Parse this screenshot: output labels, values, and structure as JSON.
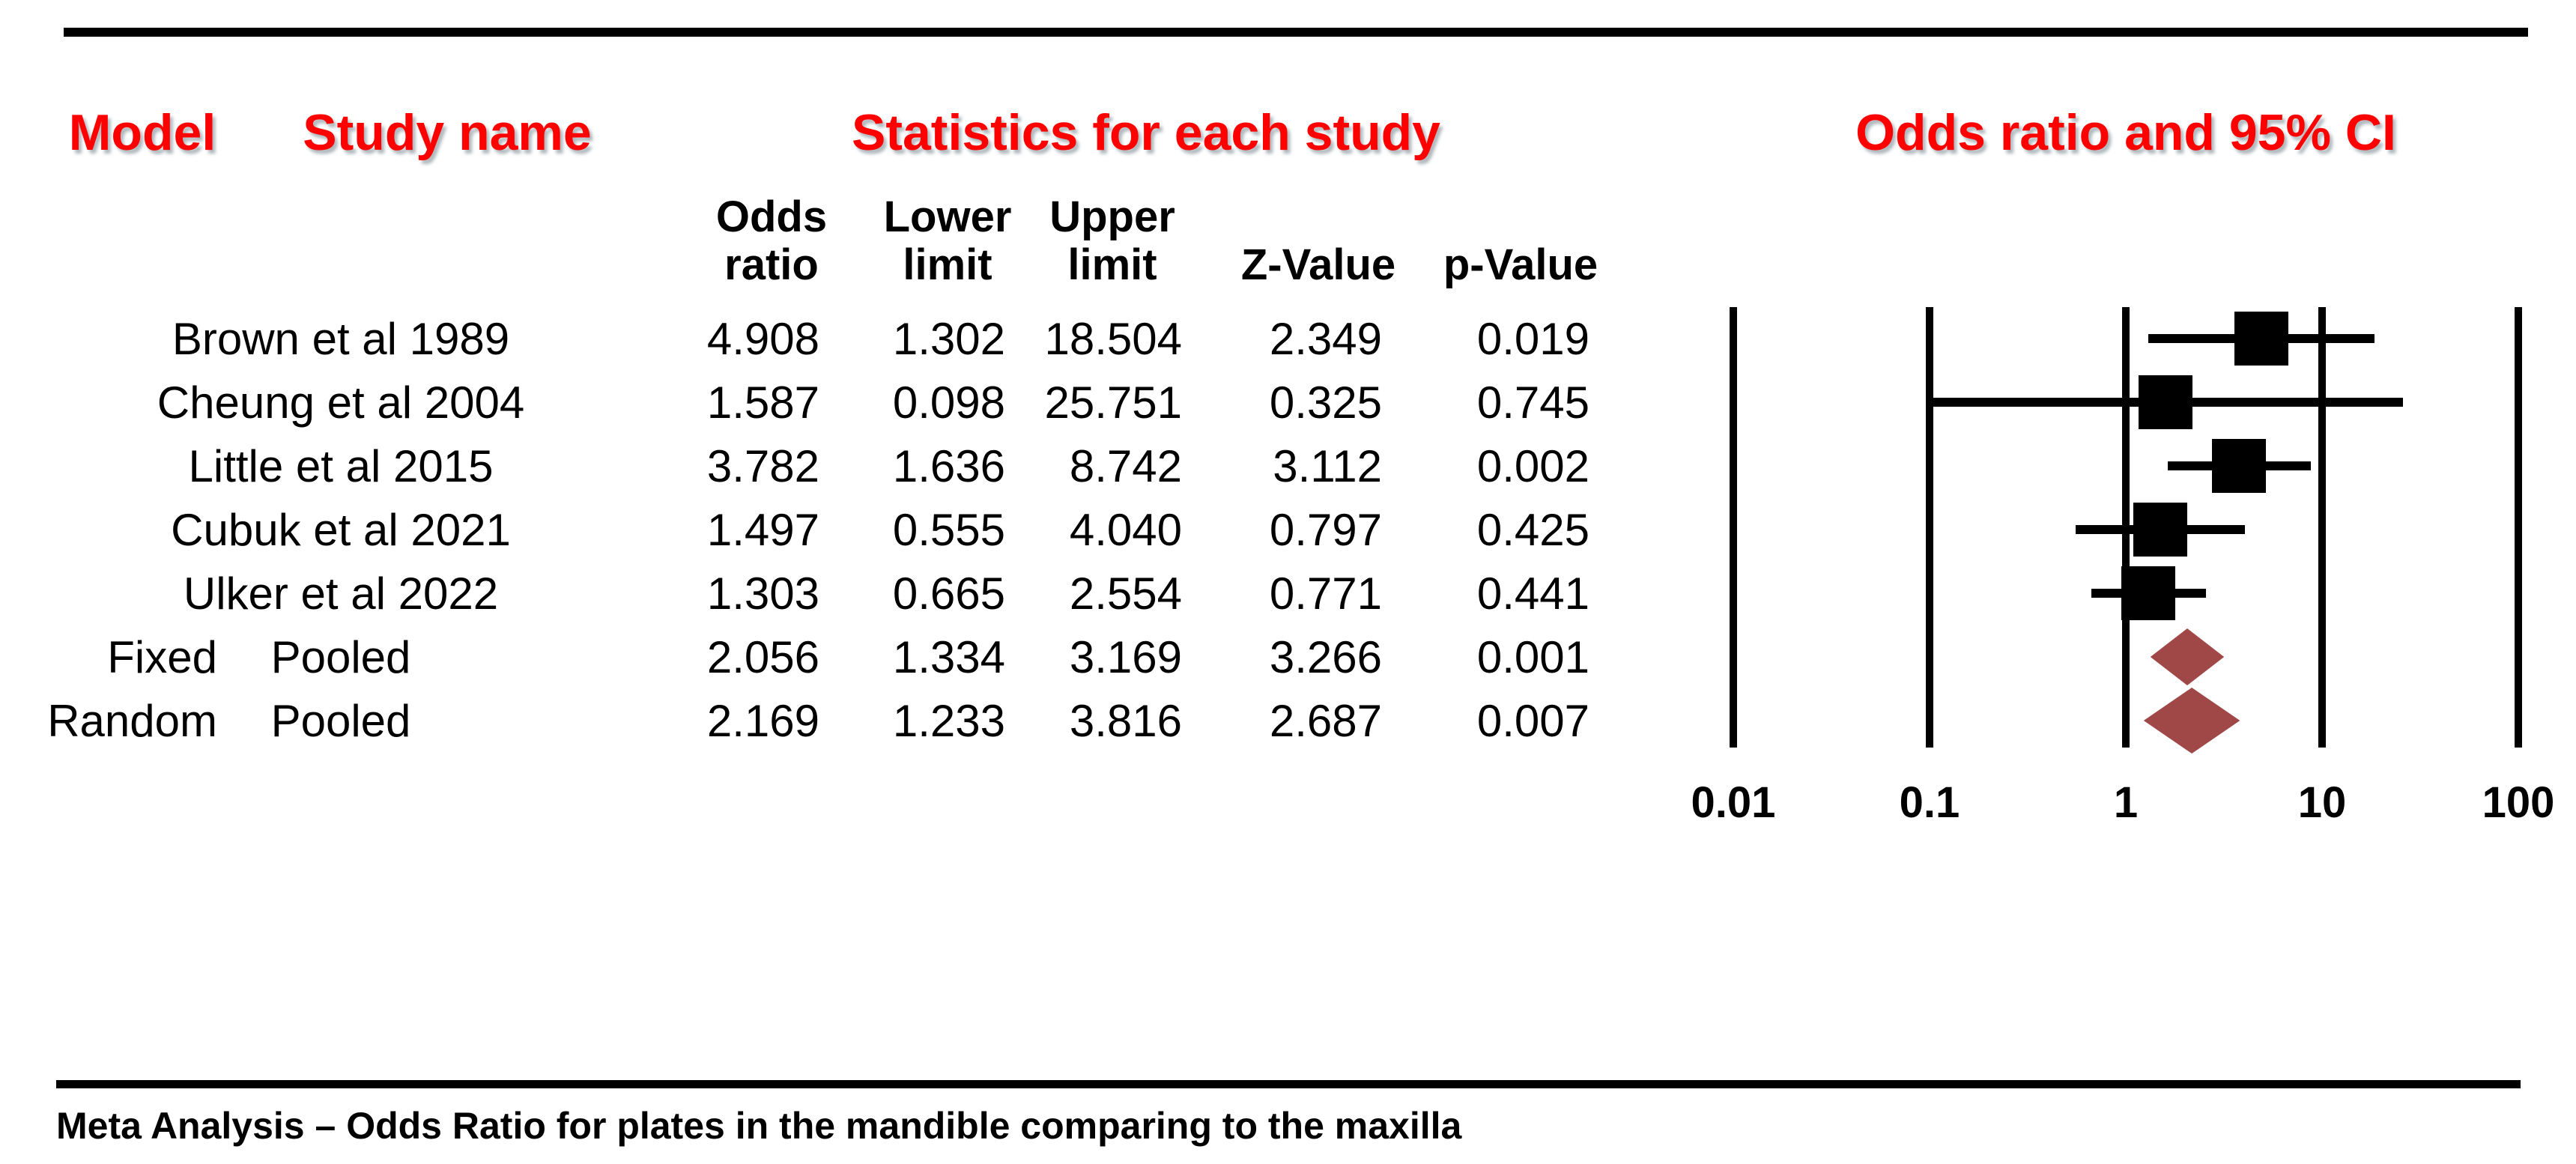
{
  "header": {
    "model": "Model",
    "study_name": "Study name",
    "statistics": "Statistics for each study",
    "or_ci": "Odds ratio and 95% CI"
  },
  "columns": {
    "odds_l1": "Odds",
    "odds_l2": "ratio",
    "lower_l1": "Lower",
    "lower_l2": "limit",
    "upper_l1": "Upper",
    "upper_l2": "limit",
    "z": "Z-Value",
    "p": "p-Value"
  },
  "rows": [
    {
      "model": "",
      "study": "Brown et al 1989",
      "or": "4.908",
      "lower": "1.302",
      "upper": "18.504",
      "z": "2.349",
      "p": "0.019"
    },
    {
      "model": "",
      "study": "Cheung et al 2004",
      "or": "1.587",
      "lower": "0.098",
      "upper": "25.751",
      "z": "0.325",
      "p": "0.745"
    },
    {
      "model": "",
      "study": "Little et al 2015",
      "or": "3.782",
      "lower": "1.636",
      "upper": "8.742",
      "z": "3.112",
      "p": "0.002"
    },
    {
      "model": "",
      "study": "Cubuk et al 2021",
      "or": "1.497",
      "lower": "0.555",
      "upper": "4.040",
      "z": "0.797",
      "p": "0.425"
    },
    {
      "model": "",
      "study": "Ulker et al 2022",
      "or": "1.303",
      "lower": "0.665",
      "upper": "2.554",
      "z": "0.771",
      "p": "0.441"
    },
    {
      "model": "Fixed",
      "study": "Pooled",
      "or": "2.056",
      "lower": "1.334",
      "upper": "3.169",
      "z": "3.266",
      "p": "0.001"
    },
    {
      "model": "Random",
      "study": "Pooled",
      "or": "2.169",
      "lower": "1.233",
      "upper": "3.816",
      "z": "2.687",
      "p": "0.007"
    }
  ],
  "axis": {
    "ticks": [
      "0.01",
      "0.1",
      "1",
      "10",
      "100"
    ]
  },
  "caption": "Meta Analysis – Odds Ratio for plates in the mandible comparing to the maxilla",
  "colors": {
    "header_red": "#ff0000",
    "marker_black": "#000000",
    "diamond_red": "#a04848",
    "background": "#ffffff"
  },
  "chart_data": {
    "type": "scatter",
    "subtype": "forest-plot",
    "title": "Odds ratio and 95% CI",
    "x_scale": "log",
    "x_ticks": [
      0.01,
      0.1,
      1,
      10,
      100
    ],
    "xlim": [
      0.01,
      100
    ],
    "grid": "vertical-lines-at-decades",
    "studies": [
      {
        "name": "Brown et al 1989",
        "or": 4.908,
        "lower": 1.302,
        "upper": 18.504,
        "z": 2.349,
        "p": 0.019,
        "marker": "square"
      },
      {
        "name": "Cheung et al 2004",
        "or": 1.587,
        "lower": 0.098,
        "upper": 25.751,
        "z": 0.325,
        "p": 0.745,
        "marker": "square"
      },
      {
        "name": "Little et al 2015",
        "or": 3.782,
        "lower": 1.636,
        "upper": 8.742,
        "z": 3.112,
        "p": 0.002,
        "marker": "square"
      },
      {
        "name": "Cubuk et al 2021",
        "or": 1.497,
        "lower": 0.555,
        "upper": 4.04,
        "z": 0.797,
        "p": 0.425,
        "marker": "square"
      },
      {
        "name": "Ulker et al 2022",
        "or": 1.303,
        "lower": 0.665,
        "upper": 2.554,
        "z": 0.771,
        "p": 0.441,
        "marker": "square"
      },
      {
        "name": "Pooled (Fixed)",
        "or": 2.056,
        "lower": 1.334,
        "upper": 3.169,
        "z": 3.266,
        "p": 0.001,
        "marker": "diamond"
      },
      {
        "name": "Pooled (Random)",
        "or": 2.169,
        "lower": 1.233,
        "upper": 3.816,
        "z": 2.687,
        "p": 0.007,
        "marker": "diamond"
      }
    ]
  }
}
